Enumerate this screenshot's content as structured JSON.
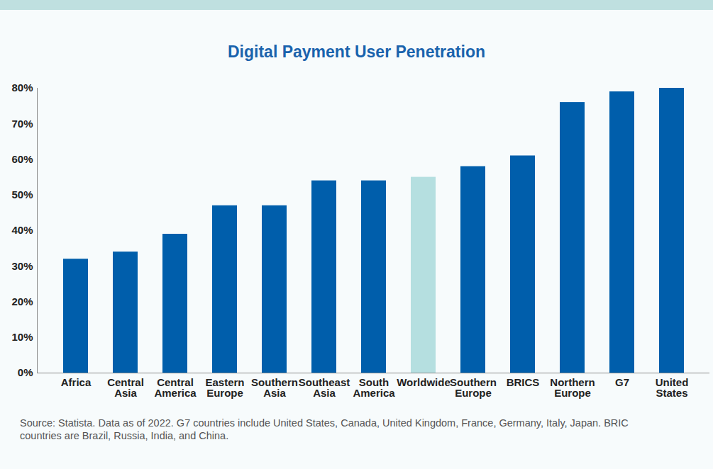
{
  "chart_data": {
    "type": "bar",
    "title": "Digital Payment User Penetration",
    "categories": [
      "Africa",
      "Central Asia",
      "Central America",
      "Eastern Europe",
      "Southern Asia",
      "Southeast Asia",
      "South America",
      "Worldwide",
      "Southern Europe",
      "BRICS",
      "Northern Europe",
      "G7",
      "United States"
    ],
    "values": [
      32,
      34,
      39,
      47,
      47,
      54,
      54,
      55,
      58,
      61,
      76,
      79,
      80
    ],
    "colors": [
      "#005eab",
      "#005eab",
      "#005eab",
      "#005eab",
      "#005eab",
      "#005eab",
      "#005eab",
      "#b5dfe0",
      "#005eab",
      "#005eab",
      "#005eab",
      "#005eab",
      "#005eab"
    ],
    "ylim": [
      0,
      80
    ],
    "yticks": [
      {
        "value": 0,
        "label": "0%"
      },
      {
        "value": 10,
        "label": "10%"
      },
      {
        "value": 20,
        "label": "20%"
      },
      {
        "value": 30,
        "label": "30%"
      },
      {
        "value": 40,
        "label": "40%"
      },
      {
        "value": 50,
        "label": "50%"
      },
      {
        "value": 60,
        "label": "60%"
      },
      {
        "value": 70,
        "label": "70%"
      },
      {
        "value": 80,
        "label": "80%"
      }
    ],
    "grid": false,
    "source": "Source: Statista. Data as of 2022. G7 countries include United States, Canada, United Kingdom, France, Germany, Italy, Japan. BRIC countries are Brazil, Russia, India, and China."
  }
}
